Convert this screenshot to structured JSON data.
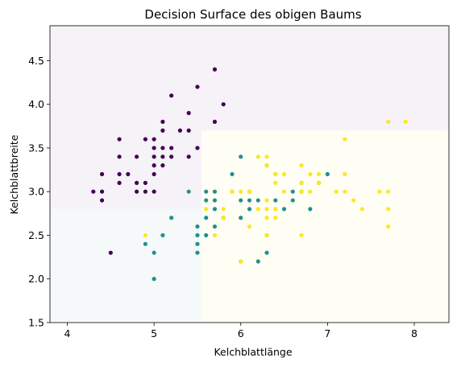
{
  "chart_data": {
    "type": "scatter",
    "title": "Decision Surface des obigen Baums",
    "xlabel": "Kelchblattlänge",
    "ylabel": "Kelchblattbreite",
    "xlim": [
      3.8,
      8.4
    ],
    "ylim": [
      1.5,
      4.9
    ],
    "xticks": [
      "4",
      "5",
      "6",
      "7",
      "8"
    ],
    "yticks": [
      "1.5",
      "2.0",
      "2.5",
      "3.0",
      "3.5",
      "4.0",
      "4.5"
    ],
    "grid": false,
    "regions": [
      {
        "x0": 3.8,
        "x1": 5.55,
        "y0": 2.8,
        "y1": 4.9,
        "color": "#f6f3f8"
      },
      {
        "x0": 3.8,
        "x1": 5.55,
        "y0": 1.5,
        "y1": 2.8,
        "color": "#f5f9fa"
      },
      {
        "x0": 5.55,
        "x1": 8.4,
        "y0": 3.7,
        "y1": 4.9,
        "color": "#f6f3f8"
      },
      {
        "x0": 5.55,
        "x1": 8.4,
        "y0": 1.5,
        "y1": 3.7,
        "color": "#fffef4"
      }
    ],
    "series": [
      {
        "color": "#440154",
        "points": [
          [
            4.3,
            3.0
          ],
          [
            4.4,
            2.9
          ],
          [
            4.4,
            3.0
          ],
          [
            4.4,
            3.2
          ],
          [
            4.5,
            2.3
          ],
          [
            4.6,
            3.1
          ],
          [
            4.6,
            3.2
          ],
          [
            4.6,
            3.4
          ],
          [
            4.6,
            3.6
          ],
          [
            4.7,
            3.2
          ],
          [
            4.8,
            3.0
          ],
          [
            4.8,
            3.1
          ],
          [
            4.8,
            3.4
          ],
          [
            4.9,
            3.0
          ],
          [
            4.9,
            3.1
          ],
          [
            4.9,
            3.6
          ],
          [
            5.0,
            3.0
          ],
          [
            5.0,
            3.2
          ],
          [
            5.0,
            3.3
          ],
          [
            5.0,
            3.4
          ],
          [
            5.0,
            3.5
          ],
          [
            5.0,
            3.6
          ],
          [
            5.1,
            3.3
          ],
          [
            5.1,
            3.4
          ],
          [
            5.1,
            3.5
          ],
          [
            5.1,
            3.7
          ],
          [
            5.1,
            3.8
          ],
          [
            5.2,
            3.4
          ],
          [
            5.2,
            3.5
          ],
          [
            5.2,
            4.1
          ],
          [
            5.3,
            3.7
          ],
          [
            5.4,
            3.4
          ],
          [
            5.4,
            3.7
          ],
          [
            5.4,
            3.9
          ],
          [
            5.5,
            3.5
          ],
          [
            5.5,
            4.2
          ],
          [
            5.7,
            3.8
          ],
          [
            5.7,
            4.4
          ],
          [
            5.8,
            4.0
          ]
        ]
      },
      {
        "color": "#21908d",
        "points": [
          [
            4.9,
            2.4
          ],
          [
            5.0,
            2.0
          ],
          [
            5.0,
            2.3
          ],
          [
            5.1,
            2.5
          ],
          [
            5.2,
            2.7
          ],
          [
            5.4,
            3.0
          ],
          [
            5.5,
            2.3
          ],
          [
            5.5,
            2.4
          ],
          [
            5.5,
            2.5
          ],
          [
            5.5,
            2.6
          ],
          [
            5.6,
            2.5
          ],
          [
            5.6,
            2.7
          ],
          [
            5.6,
            2.9
          ],
          [
            5.6,
            3.0
          ],
          [
            5.7,
            2.6
          ],
          [
            5.7,
            2.8
          ],
          [
            5.7,
            2.9
          ],
          [
            5.7,
            3.0
          ],
          [
            5.8,
            2.7
          ],
          [
            5.9,
            3.0
          ],
          [
            5.9,
            3.2
          ],
          [
            6.0,
            2.2
          ],
          [
            6.0,
            2.7
          ],
          [
            6.0,
            2.9
          ],
          [
            6.0,
            3.4
          ],
          [
            6.1,
            2.8
          ],
          [
            6.1,
            2.9
          ],
          [
            6.1,
            3.0
          ],
          [
            6.2,
            2.2
          ],
          [
            6.2,
            2.9
          ],
          [
            6.3,
            2.3
          ],
          [
            6.3,
            2.5
          ],
          [
            6.3,
            3.3
          ],
          [
            6.4,
            2.9
          ],
          [
            6.4,
            3.2
          ],
          [
            6.5,
            2.8
          ],
          [
            6.6,
            2.9
          ],
          [
            6.6,
            3.0
          ],
          [
            6.7,
            3.0
          ],
          [
            6.7,
            3.1
          ],
          [
            6.8,
            2.8
          ],
          [
            6.9,
            3.1
          ],
          [
            7.0,
            3.2
          ]
        ]
      },
      {
        "color": "#fde725",
        "points": [
          [
            4.9,
            2.5
          ],
          [
            5.6,
            2.8
          ],
          [
            5.7,
            2.5
          ],
          [
            5.8,
            2.7
          ],
          [
            5.8,
            2.8
          ],
          [
            5.9,
            3.0
          ],
          [
            6.0,
            2.2
          ],
          [
            6.0,
            3.0
          ],
          [
            6.1,
            2.6
          ],
          [
            6.1,
            3.0
          ],
          [
            6.2,
            2.8
          ],
          [
            6.2,
            3.4
          ],
          [
            6.3,
            2.5
          ],
          [
            6.3,
            2.7
          ],
          [
            6.3,
            2.8
          ],
          [
            6.3,
            2.9
          ],
          [
            6.3,
            3.3
          ],
          [
            6.3,
            3.4
          ],
          [
            6.4,
            2.7
          ],
          [
            6.4,
            2.8
          ],
          [
            6.4,
            3.1
          ],
          [
            6.4,
            3.2
          ],
          [
            6.5,
            3.0
          ],
          [
            6.5,
            3.2
          ],
          [
            6.7,
            2.5
          ],
          [
            6.7,
            3.0
          ],
          [
            6.7,
            3.1
          ],
          [
            6.7,
            3.3
          ],
          [
            6.8,
            3.0
          ],
          [
            6.8,
            3.2
          ],
          [
            6.9,
            3.1
          ],
          [
            6.9,
            3.2
          ],
          [
            7.1,
            3.0
          ],
          [
            7.2,
            3.0
          ],
          [
            7.2,
            3.2
          ],
          [
            7.2,
            3.6
          ],
          [
            7.3,
            2.9
          ],
          [
            7.4,
            2.8
          ],
          [
            7.6,
            3.0
          ],
          [
            7.7,
            2.6
          ],
          [
            7.7,
            2.8
          ],
          [
            7.7,
            3.0
          ],
          [
            7.7,
            3.8
          ],
          [
            7.9,
            3.8
          ]
        ]
      }
    ]
  }
}
